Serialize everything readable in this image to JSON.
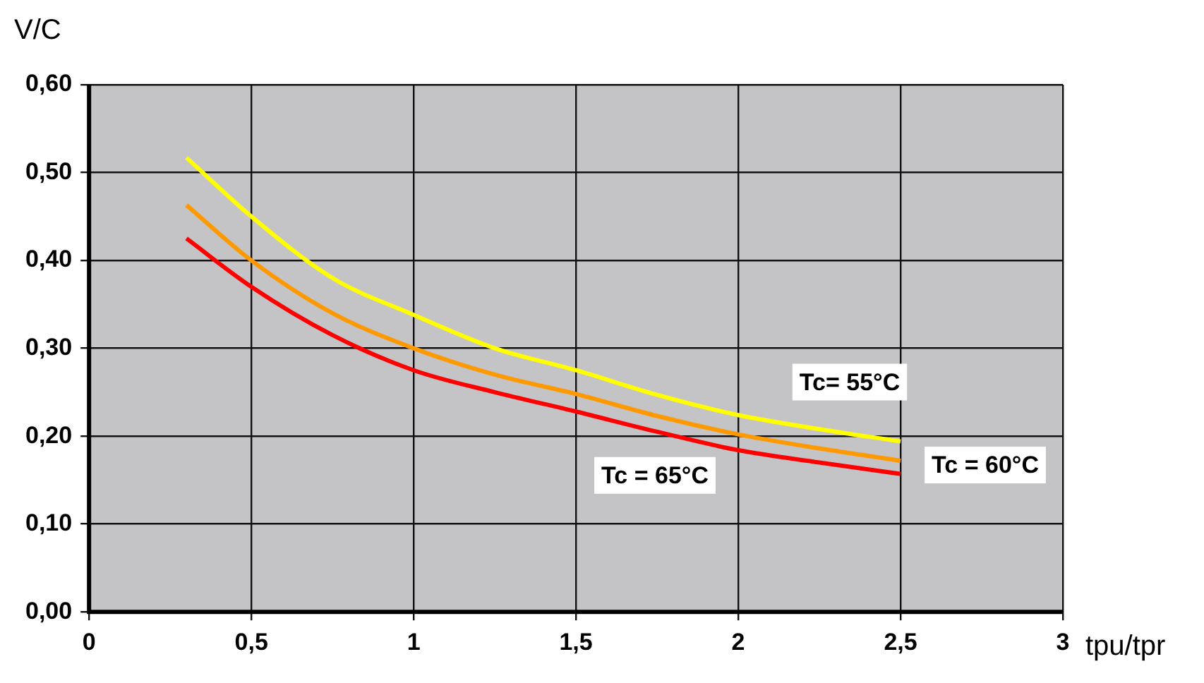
{
  "chart_data": {
    "type": "line",
    "xlabel": "tpu/tpr",
    "ylabel": "V/C",
    "x": [
      0.3,
      0.5,
      0.75,
      1.0,
      1.25,
      1.5,
      1.75,
      2.0,
      2.25,
      2.5
    ],
    "series": [
      {
        "name": "Tc= 55°C",
        "color": "#ffff00",
        "values": [
          0.517,
          0.45,
          0.38,
          0.338,
          0.3,
          0.275,
          0.247,
          0.224,
          0.208,
          0.194
        ]
      },
      {
        "name": "Tc = 60°C",
        "color": "#ff9900",
        "values": [
          0.463,
          0.4,
          0.34,
          0.3,
          0.27,
          0.248,
          0.223,
          0.202,
          0.186,
          0.172
        ]
      },
      {
        "name": "Tc = 65°C",
        "color": "#ff0000",
        "values": [
          0.425,
          0.37,
          0.315,
          0.275,
          0.25,
          0.228,
          0.205,
          0.184,
          0.17,
          0.157
        ]
      }
    ],
    "xlim": [
      0,
      3
    ],
    "xticks": [
      0,
      {
        "value": 0.5,
        "label": "0,5"
      },
      1,
      {
        "value": 1.5,
        "label": "1,5"
      },
      2,
      {
        "value": 2.5,
        "label": "2,5"
      },
      3
    ],
    "ylim": [
      0,
      0.6
    ],
    "yticks": [
      {
        "value": 0,
        "label": "0,00"
      },
      {
        "value": 0.1,
        "label": "0,10"
      },
      {
        "value": 0.2,
        "label": "0,20"
      },
      {
        "value": 0.3,
        "label": "0,30"
      },
      {
        "value": 0.4,
        "label": "0,40"
      },
      {
        "value": 0.5,
        "label": "0,50"
      },
      {
        "value": 0.6,
        "label": "0,60"
      }
    ],
    "grid": true,
    "legend": false,
    "marker": "none",
    "line_style": "solid"
  }
}
